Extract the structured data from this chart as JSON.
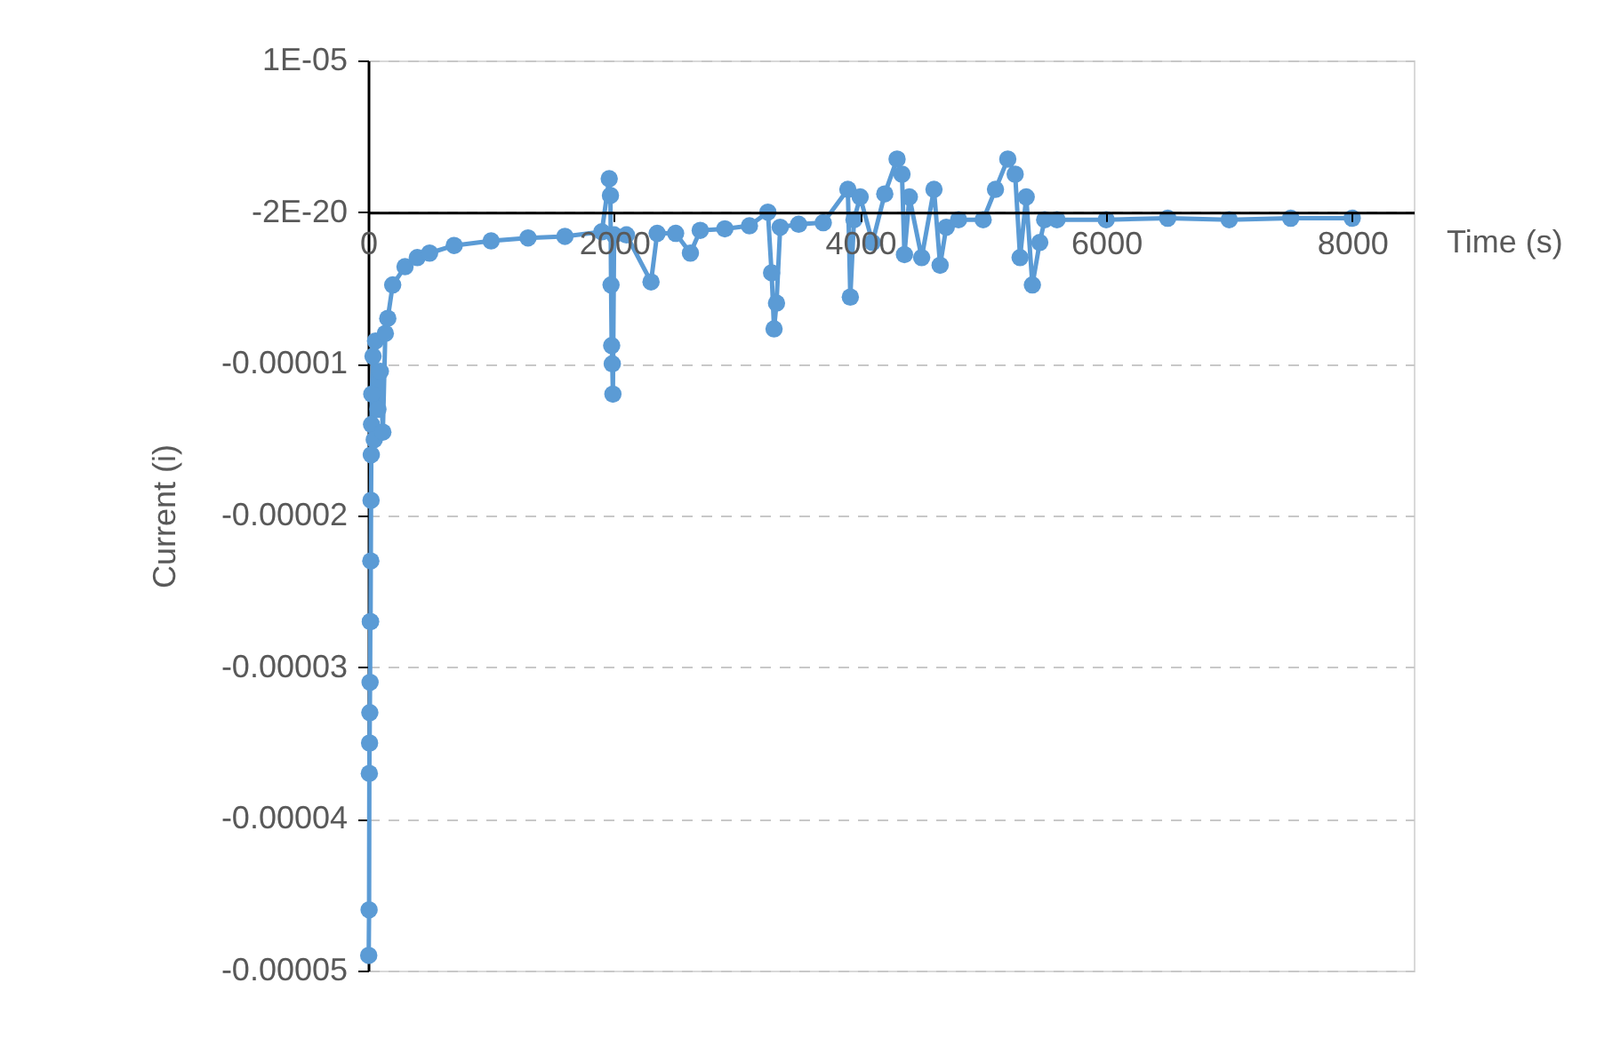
{
  "chart_data": {
    "type": "line",
    "xlabel": "Time (s)",
    "ylabel": "Current (i)",
    "marker": "circle",
    "line_style": "solid",
    "grid": "y",
    "xlim": [
      0,
      8500
    ],
    "xticks": [
      0,
      2000,
      4000,
      6000,
      8000
    ],
    "ylim": [
      -5e-05,
      1e-05
    ],
    "yticks": [
      {
        "value": 1e-05,
        "label": "1E-05"
      },
      {
        "value": 0,
        "label": "-2E-20"
      },
      {
        "value": -1e-05,
        "label": "-0.00001"
      },
      {
        "value": -2e-05,
        "label": "-0.00002"
      },
      {
        "value": -3e-05,
        "label": "-0.00003"
      },
      {
        "value": -4e-05,
        "label": "-0.00004"
      },
      {
        "value": -5e-05,
        "label": "-0.00005"
      }
    ],
    "series": [
      {
        "color": "#5b9bd5",
        "x": [
          5,
          8,
          10,
          12,
          14,
          16,
          18,
          20,
          22,
          24,
          26,
          28,
          30,
          40,
          50,
          60,
          80,
          100,
          120,
          140,
          160,
          200,
          300,
          400,
          500,
          700,
          1000,
          1300,
          1600,
          1900,
          1960,
          1970,
          1975,
          1980,
          1985,
          1990,
          2000,
          2100,
          2300,
          2350,
          2500,
          2620,
          2700,
          2900,
          3100,
          3250,
          3280,
          3300,
          3320,
          3350,
          3500,
          3700,
          3900,
          3920,
          3950,
          4000,
          4100,
          4200,
          4300,
          4340,
          4360,
          4400,
          4500,
          4600,
          4650,
          4700,
          4800,
          5000,
          5100,
          5200,
          5260,
          5300,
          5350,
          5400,
          5460,
          5500,
          5600,
          6000,
          6500,
          7000,
          7500,
          8000
        ],
        "values": [
          -4.9e-05,
          -4.6e-05,
          -3.7e-05,
          -3.5e-05,
          -3.3e-05,
          -3.1e-05,
          -2.7e-05,
          -2.7e-05,
          -2.3e-05,
          -1.9e-05,
          -1.6e-05,
          -1.4e-05,
          -1.2e-05,
          -9.5e-06,
          -1.5e-05,
          -8.5e-06,
          -1.3e-05,
          -1.05e-05,
          -1.45e-05,
          -8e-06,
          -7e-06,
          -4.8e-06,
          -3.6e-06,
          -3e-06,
          -2.7e-06,
          -2.2e-06,
          -1.9e-06,
          -1.7e-06,
          -1.6e-06,
          -1.3e-06,
          2.2e-06,
          1.1e-06,
          -4.8e-06,
          -8.8e-06,
          -1e-05,
          -1.2e-05,
          -1.5e-06,
          -1.5e-06,
          -4.6e-06,
          -1.4e-06,
          -1.4e-06,
          -2.7e-06,
          -1.2e-06,
          -1.1e-06,
          -9e-07,
          0,
          -4e-06,
          -7.7e-06,
          -6e-06,
          -1e-06,
          -8e-07,
          -7e-07,
          1.5e-06,
          -5.6e-06,
          -5e-07,
          1e-06,
          -2e-06,
          1.2e-06,
          3.5e-06,
          2.5e-06,
          -2.8e-06,
          1e-06,
          -3e-06,
          1.5e-06,
          -3.5e-06,
          -1e-06,
          -5e-07,
          -5e-07,
          1.5e-06,
          3.5e-06,
          2.5e-06,
          -3e-06,
          1e-06,
          -4.8e-06,
          -2e-06,
          -5e-07,
          -5e-07,
          -5e-07,
          -4e-07,
          -5e-07,
          -4e-07,
          -4e-07
        ]
      }
    ]
  }
}
